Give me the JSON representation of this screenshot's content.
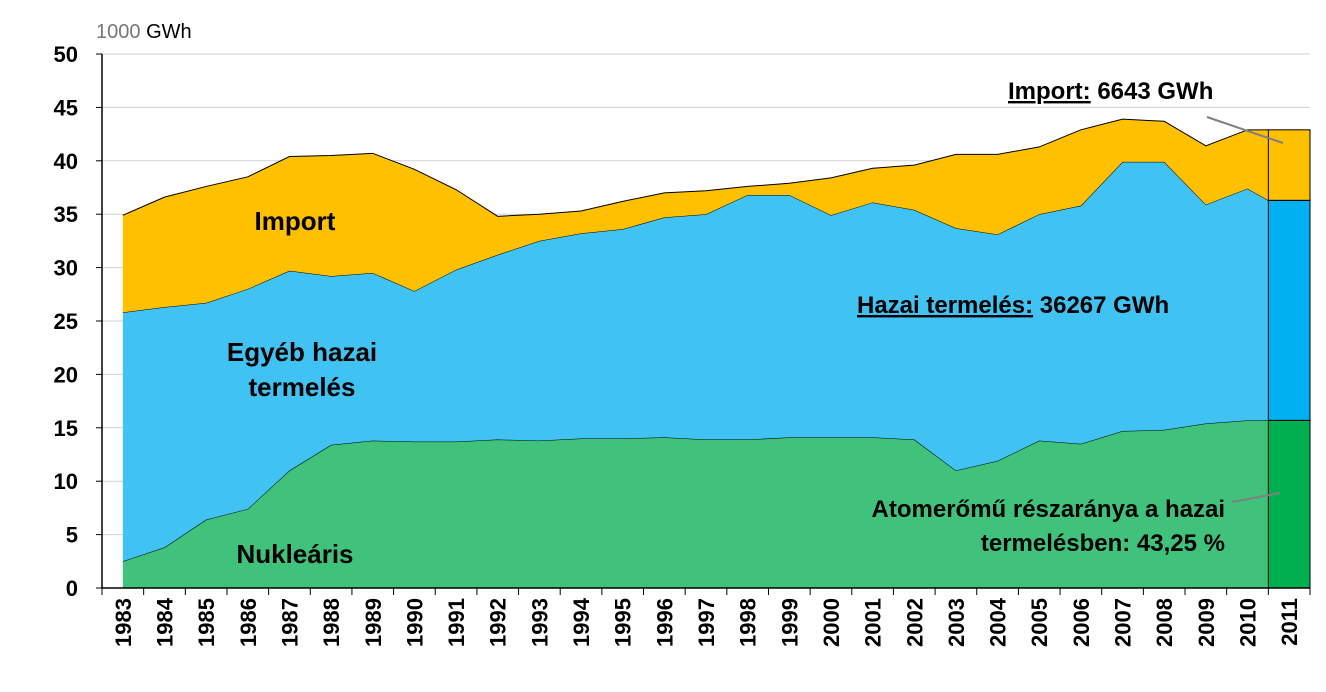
{
  "chart_data": {
    "type": "area",
    "stacked": true,
    "unit_label": {
      "number": "1000",
      "unit": "GWh"
    },
    "categories": [
      "1983",
      "1984",
      "1985",
      "1986",
      "1987",
      "1988",
      "1989",
      "1990",
      "1991",
      "1992",
      "1993",
      "1994",
      "1995",
      "1996",
      "1997",
      "1998",
      "1999",
      "2000",
      "2001",
      "2002",
      "2003",
      "2004",
      "2005",
      "2006",
      "2007",
      "2008",
      "2009",
      "2010",
      "2011"
    ],
    "ylim": [
      0,
      50
    ],
    "yticks": [
      0,
      5,
      10,
      15,
      20,
      25,
      30,
      35,
      40,
      45,
      50
    ],
    "grid": true,
    "series": [
      {
        "name": "Nukleáris",
        "color": "#40c27a",
        "values": [
          2.5,
          3.8,
          6.4,
          7.4,
          11.0,
          13.4,
          13.8,
          13.7,
          13.7,
          13.9,
          13.8,
          14.0,
          14.0,
          14.1,
          13.9,
          13.9,
          14.1,
          14.1,
          14.1,
          13.9,
          11.0,
          11.9,
          13.8,
          13.5,
          14.7,
          14.8,
          15.4,
          15.7,
          15.7
        ]
      },
      {
        "name": "Egyéb hazai termelés",
        "color": "#40c2f2",
        "values": [
          23.3,
          22.5,
          20.3,
          20.6,
          18.7,
          15.8,
          15.7,
          14.1,
          16.1,
          17.3,
          18.7,
          19.2,
          19.6,
          20.6,
          21.1,
          22.9,
          22.7,
          20.8,
          22.0,
          21.5,
          22.7,
          21.2,
          21.2,
          22.3,
          25.2,
          25.1,
          20.5,
          21.7,
          20.6
        ]
      },
      {
        "name": "Import",
        "color": "#ffc000",
        "values": [
          9.1,
          10.3,
          10.9,
          10.5,
          10.7,
          11.3,
          11.2,
          11.4,
          7.5,
          3.6,
          2.5,
          2.1,
          2.6,
          2.3,
          2.2,
          0.8,
          1.1,
          3.5,
          3.2,
          4.2,
          6.9,
          7.5,
          6.3,
          7.1,
          4.0,
          3.8,
          5.5,
          5.5,
          6.6
        ]
      }
    ],
    "labels": {
      "import": "Import",
      "egyeb_line1": "Egyéb hazai",
      "egyeb_line2": "termelés",
      "nuklearis": "Nukleáris"
    },
    "annotations": {
      "import": {
        "label": "Import:",
        "value": "6643 GWh"
      },
      "hazai": {
        "label": "Hazai termelés:",
        "value": "36267 GWh"
      },
      "atom_line1": "Atomerőmű részaránya a hazai",
      "atom_line2": "termelésben: 43,25 %"
    },
    "highlight_2011_colors": {
      "nuclear": "#00b050",
      "other": "#00b0f0",
      "import": "#ffc000"
    }
  }
}
